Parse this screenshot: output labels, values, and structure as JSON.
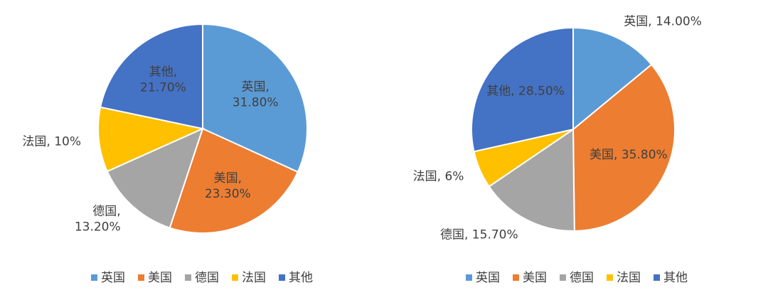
{
  "chart_data": [
    {
      "type": "pie",
      "categories": [
        "英国",
        "美国",
        "德国",
        "法国",
        "其他"
      ],
      "values": [
        31.8,
        23.3,
        13.2,
        10,
        21.7
      ],
      "value_labels": [
        "英国, 31.80%",
        "美国, 23.30%",
        "德国, 13.20%",
        "法国, 10%",
        "其他, 21.70%"
      ],
      "colors": [
        "#5b9bd5",
        "#ed7d31",
        "#a5a5a5",
        "#ffc000",
        "#4472c4"
      ],
      "legend": "bottom"
    },
    {
      "type": "pie",
      "categories": [
        "英国",
        "美国",
        "德国",
        "法国",
        "其他"
      ],
      "values": [
        14,
        35.8,
        15.7,
        6,
        28.5
      ],
      "value_labels": [
        "英国, 14.00%",
        "美国, 35.80%",
        "德国, 15.70%",
        "法国, 6%",
        "其他, 28.50%"
      ],
      "colors": [
        "#5b9bd5",
        "#ed7d31",
        "#a5a5a5",
        "#ffc000",
        "#4472c4"
      ],
      "legend": "bottom"
    }
  ]
}
